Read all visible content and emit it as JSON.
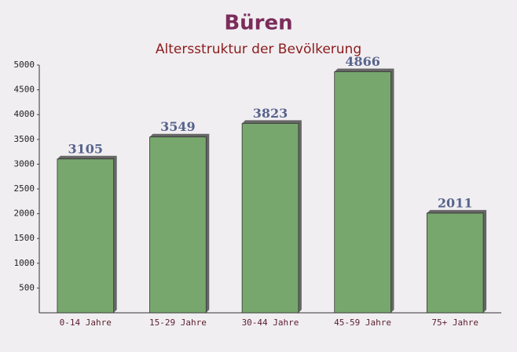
{
  "chart_data": {
    "type": "bar",
    "title": "Büren",
    "subtitle": "Altersstruktur der Bevölkerung",
    "categories": [
      "0-14 Jahre",
      "15-29 Jahre",
      "30-44 Jahre",
      "45-59 Jahre",
      "75+ Jahre"
    ],
    "values": [
      3105,
      3549,
      3823,
      4866,
      2011
    ],
    "color": "#6a9f5f",
    "ylim": [
      0,
      5000
    ],
    "yticks": [
      500,
      1000,
      1500,
      2000,
      2500,
      3000,
      3500,
      4000,
      4500,
      5000
    ],
    "grid": false
  }
}
